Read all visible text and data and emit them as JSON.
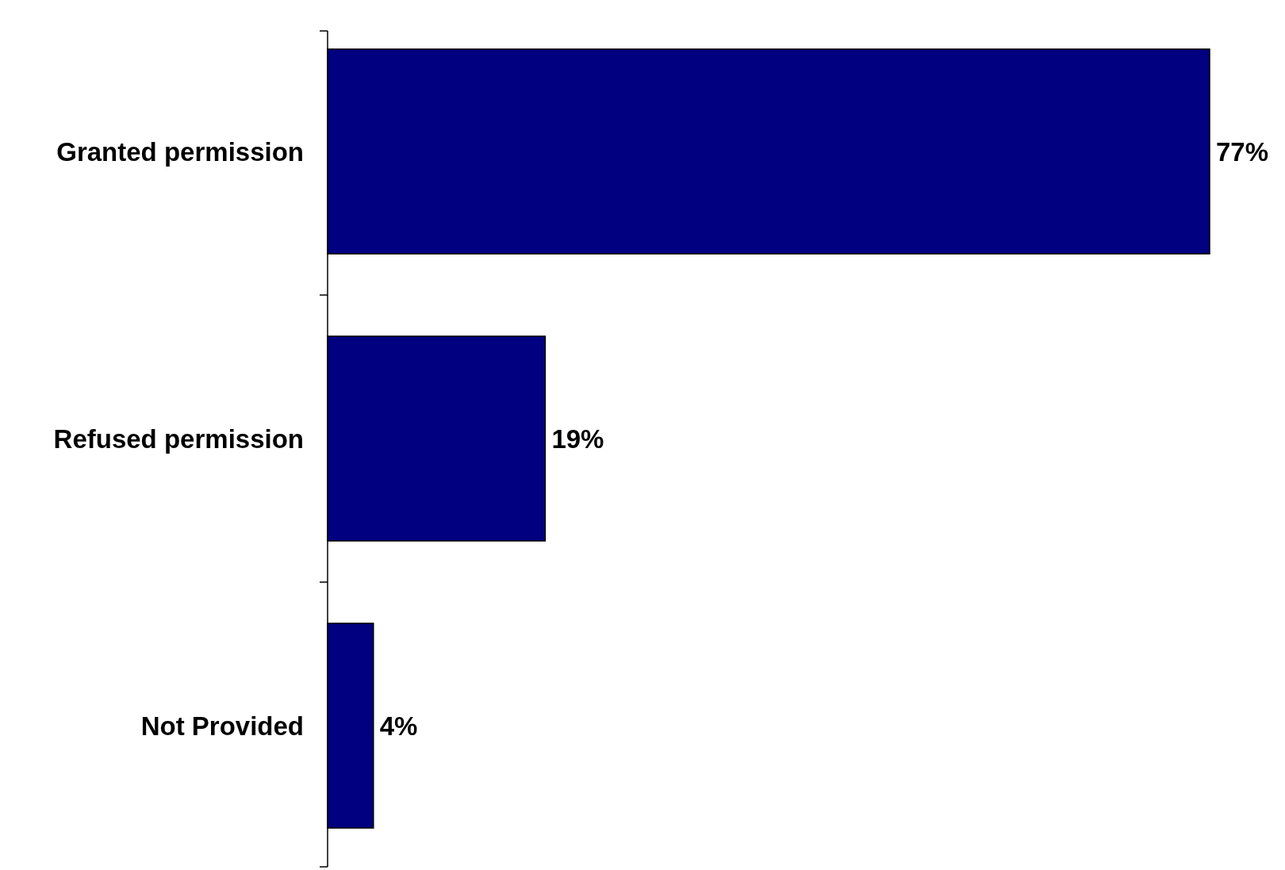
{
  "chart_data": {
    "type": "bar",
    "orientation": "horizontal",
    "categories": [
      "Granted permission",
      "Refused permission",
      "Not Provided"
    ],
    "values": [
      77,
      19,
      4
    ],
    "value_labels": [
      "77%",
      "19%",
      "4%"
    ],
    "color": "#000080"
  }
}
